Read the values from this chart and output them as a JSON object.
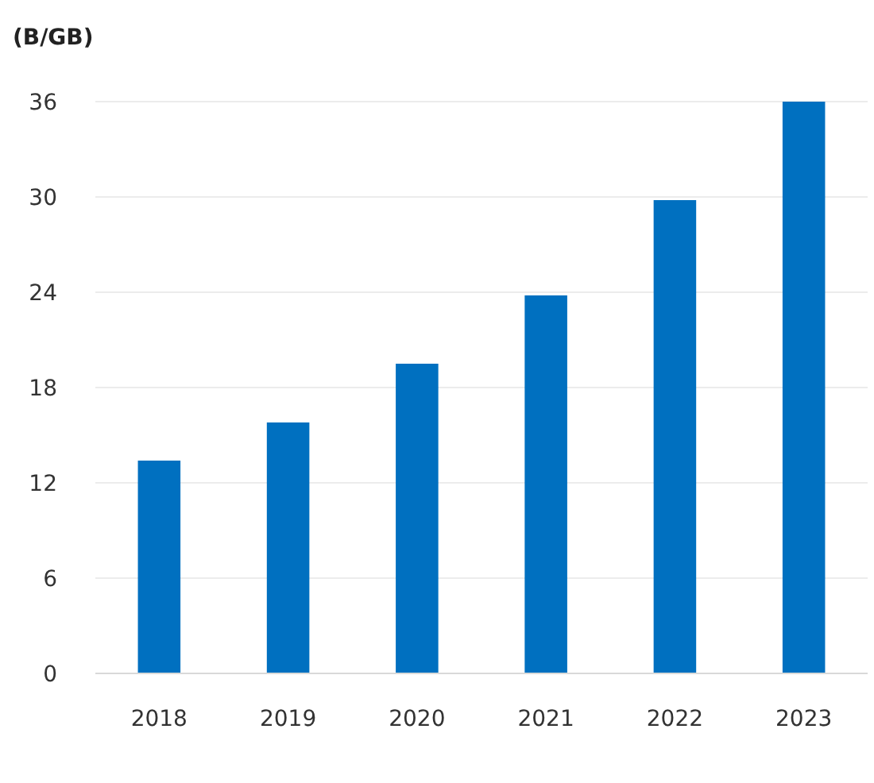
{
  "chart_data": {
    "type": "bar",
    "ylabel": "(B/GB)",
    "categories": [
      "2018",
      "2019",
      "2020",
      "2021",
      "2022",
      "2023"
    ],
    "values": [
      13.4,
      15.8,
      19.5,
      23.8,
      29.8,
      36
    ],
    "color": "#0070c0",
    "ylim": [
      0,
      36
    ],
    "yticks": [
      0,
      6,
      12,
      18,
      24,
      30,
      36
    ],
    "grid": "y"
  }
}
